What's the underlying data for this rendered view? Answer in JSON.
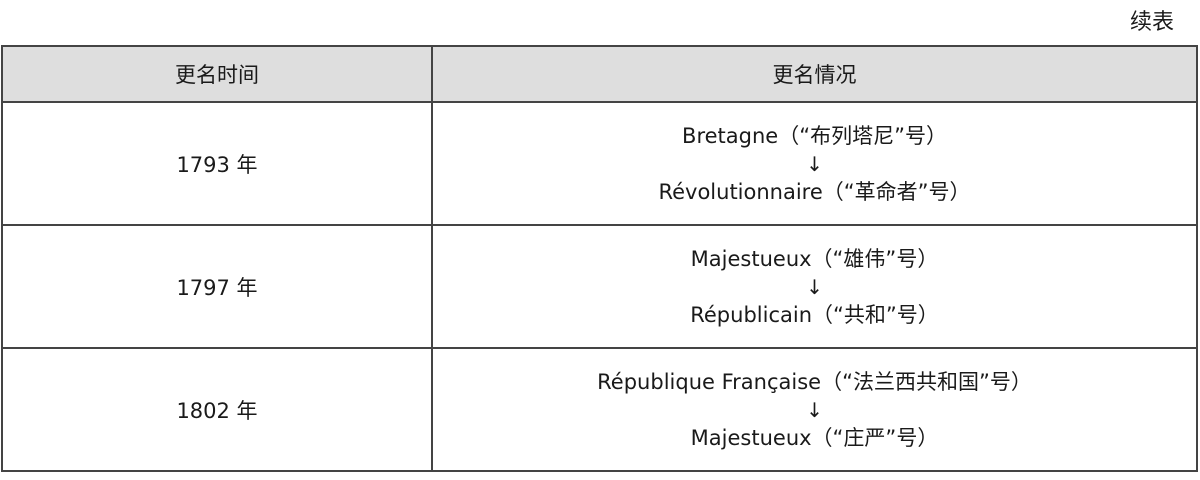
{
  "caption": "续表",
  "headers": [
    "更名时间",
    "更名情况"
  ],
  "rows": [
    {
      "year": "1793 年",
      "from": "Bretagne（“布列塔尼”号）",
      "arrow": "↓",
      "to": "Révolutionnaire（“革命者”号）"
    },
    {
      "year": "1797 年",
      "from": "Majestueux（“雄伟”号）",
      "arrow": "↓",
      "to": "Républicain（“共和”号）"
    },
    {
      "year": "1802 年",
      "from": "République Française（“法兰西共和国”号）",
      "arrow": "↓",
      "to": "Majestueux（“庄严”号）"
    }
  ]
}
